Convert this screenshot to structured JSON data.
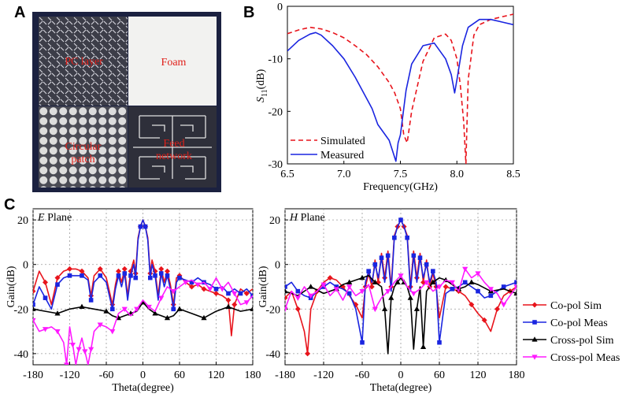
{
  "panels": {
    "a": "A",
    "b": "B",
    "c": "C"
  },
  "photo": {
    "tiles": [
      {
        "label": "PC layer"
      },
      {
        "label": "Foam"
      },
      {
        "label": "Circular\npatch"
      },
      {
        "label": "Feed\nnetwork"
      }
    ]
  },
  "colors": {
    "co_sim": "#e8141c",
    "co_meas": "#1a25e0",
    "cross_sim": "#000000",
    "cross_meas": "#ff1aff",
    "sim_b": "#e8141c",
    "meas_b": "#1a25e0"
  },
  "chart_data": [
    {
      "id": "s11",
      "type": "line",
      "title": "",
      "xlabel": "Frequency(GHz)",
      "ylabel": "S11(dB)",
      "xlim": [
        6.5,
        8.5
      ],
      "ylim": [
        -30,
        0
      ],
      "xticks": [
        "6.5",
        "7.0",
        "7.5",
        "8.0",
        "8.5"
      ],
      "yticks": [
        "0",
        "-10",
        "-20",
        "-30"
      ],
      "series": [
        {
          "name": "Simulated",
          "style": "dashed",
          "x": [
            6.5,
            6.6,
            6.7,
            6.8,
            6.9,
            7.0,
            7.1,
            7.2,
            7.3,
            7.4,
            7.45,
            7.5,
            7.53,
            7.56,
            7.6,
            7.7,
            7.8,
            7.9,
            7.95,
            8.0,
            8.03,
            8.06,
            8.08,
            8.1,
            8.15,
            8.2,
            8.3,
            8.4,
            8.5
          ],
          "y": [
            -5.2,
            -4.5,
            -4.0,
            -4.3,
            -5.0,
            -6.0,
            -7.5,
            -9.2,
            -11.5,
            -14.5,
            -16.5,
            -19.5,
            -24.5,
            -26.0,
            -20.0,
            -10.5,
            -6.0,
            -5.3,
            -6.5,
            -10.0,
            -15.0,
            -22.0,
            -30.0,
            -14.0,
            -5.5,
            -3.5,
            -2.5,
            -2.0,
            -1.5
          ]
        },
        {
          "name": "Measured",
          "style": "solid",
          "x": [
            6.5,
            6.6,
            6.7,
            6.75,
            6.8,
            6.9,
            7.0,
            7.1,
            7.2,
            7.25,
            7.3,
            7.35,
            7.4,
            7.43,
            7.46,
            7.48,
            7.5,
            7.55,
            7.6,
            7.7,
            7.8,
            7.9,
            7.95,
            7.98,
            8.0,
            8.05,
            8.1,
            8.2,
            8.3,
            8.4,
            8.5
          ],
          "y": [
            -8.5,
            -6.5,
            -5.3,
            -5.0,
            -5.5,
            -7.5,
            -10.0,
            -13.5,
            -17.5,
            -19.5,
            -22.5,
            -24.0,
            -25.5,
            -27.5,
            -29.5,
            -26.0,
            -24.5,
            -16.0,
            -11.0,
            -7.5,
            -7.0,
            -10.0,
            -13.0,
            -16.5,
            -14.0,
            -7.5,
            -4.0,
            -2.5,
            -2.5,
            -3.0,
            -3.5
          ]
        }
      ]
    },
    {
      "id": "eplane",
      "type": "line",
      "title": "E Plane",
      "xlabel": "Theta(degree)",
      "ylabel": "Gain(dB)",
      "xlim": [
        -180,
        180
      ],
      "ylim": [
        -45,
        25
      ],
      "xticks": [
        "-180",
        "-120",
        "-60",
        "0",
        "60",
        "120",
        "180"
      ],
      "yticks": [
        "20",
        "0",
        "-20",
        "-40"
      ],
      "series": [
        {
          "name": "Co-pol Sim",
          "x": [
            -180,
            -170,
            -160,
            -150,
            -140,
            -130,
            -120,
            -110,
            -100,
            -90,
            -85,
            -80,
            -70,
            -60,
            -50,
            -45,
            -40,
            -35,
            -30,
            -25,
            -20,
            -15,
            -12,
            -8,
            -4,
            0,
            4,
            8,
            12,
            15,
            20,
            25,
            30,
            35,
            40,
            45,
            50,
            55,
            60,
            70,
            80,
            90,
            100,
            110,
            120,
            130,
            140,
            145,
            150,
            160,
            170,
            180
          ],
          "y": [
            -12,
            -3,
            -8,
            -18,
            -6,
            -3,
            -2,
            -2,
            -3,
            -6,
            -14,
            -5,
            -2,
            -6,
            -18,
            -9,
            -3,
            -8,
            -2,
            -14,
            -3,
            2,
            -4,
            12,
            17,
            20,
            17,
            12,
            -4,
            2,
            -3,
            -14,
            -2,
            -8,
            -3,
            -9,
            -18,
            -6,
            -5,
            -8,
            -10,
            -9,
            -11,
            -12,
            -13,
            -14,
            -16,
            -32,
            -18,
            -11,
            -13,
            -11
          ]
        },
        {
          "name": "Co-pol Meas",
          "x": [
            -180,
            -170,
            -160,
            -150,
            -140,
            -130,
            -120,
            -110,
            -100,
            -90,
            -85,
            -80,
            -70,
            -60,
            -50,
            -45,
            -40,
            -35,
            -30,
            -25,
            -20,
            -15,
            -12,
            -8,
            -4,
            0,
            4,
            8,
            12,
            15,
            20,
            25,
            30,
            35,
            40,
            45,
            50,
            55,
            60,
            70,
            80,
            90,
            100,
            110,
            120,
            130,
            140,
            150,
            160,
            170,
            180
          ],
          "y": [
            -18,
            -10,
            -15,
            -20,
            -9,
            -6,
            -5,
            -5,
            -5,
            -7,
            -16,
            -8,
            -5,
            -8,
            -20,
            -11,
            -5,
            -10,
            -4,
            -16,
            -5,
            0,
            -6,
            11,
            17,
            20,
            17,
            11,
            -6,
            0,
            -5,
            -16,
            -4,
            -10,
            -5,
            -11,
            -20,
            -8,
            -6,
            -7,
            -8,
            -6,
            -8,
            -9,
            -11,
            -10,
            -13,
            -11,
            -13,
            -11,
            -14
          ]
        },
        {
          "name": "Cross-pol Sim",
          "x": [
            -180,
            -160,
            -140,
            -120,
            -100,
            -80,
            -60,
            -50,
            -40,
            -30,
            -20,
            -10,
            0,
            10,
            20,
            30,
            40,
            50,
            60,
            80,
            100,
            120,
            140,
            160,
            180
          ],
          "y": [
            -20,
            -21,
            -22,
            -20,
            -19,
            -20,
            -21,
            -23,
            -24,
            -23,
            -22,
            -21,
            -17,
            -20,
            -22,
            -23,
            -24,
            -23,
            -20,
            -22,
            -24,
            -21,
            -19,
            -21,
            -20
          ]
        },
        {
          "name": "Cross-pol Meas",
          "x": [
            -180,
            -170,
            -160,
            -150,
            -140,
            -130,
            -125,
            -120,
            -115,
            -110,
            -105,
            -100,
            -95,
            -90,
            -85,
            -80,
            -70,
            -60,
            -50,
            -40,
            -30,
            -20,
            -10,
            0,
            10,
            20,
            30,
            40,
            50,
            60,
            70,
            80,
            90,
            100,
            110,
            120,
            130,
            140,
            150,
            160,
            170,
            180
          ],
          "y": [
            -25,
            -30,
            -29,
            -28,
            -30,
            -35,
            -45,
            -28,
            -36,
            -45,
            -38,
            -33,
            -39,
            -45,
            -38,
            -30,
            -27,
            -28,
            -30,
            -22,
            -20,
            -23,
            -20,
            -16,
            -19,
            -21,
            -15,
            -10,
            -12,
            -10,
            -8,
            -7,
            -9,
            -8,
            -11,
            -6,
            -11,
            -8,
            -13,
            -18,
            -17,
            -14
          ]
        }
      ]
    },
    {
      "id": "hplane",
      "type": "line",
      "title": "H Plane",
      "xlabel": "Theta(degree)",
      "ylabel": "Gain(dB)",
      "xlim": [
        -180,
        180
      ],
      "ylim": [
        -45,
        25
      ],
      "xticks": [
        "-180",
        "-120",
        "-60",
        "0",
        "60",
        "120",
        "180"
      ],
      "yticks": [
        "20",
        "0",
        "-20",
        "-40"
      ],
      "series": [
        {
          "name": "Co-pol Sim",
          "x": [
            -180,
            -170,
            -160,
            -150,
            -145,
            -140,
            -130,
            -120,
            -110,
            -100,
            -90,
            -80,
            -70,
            -60,
            -55,
            -50,
            -45,
            -40,
            -35,
            -30,
            -25,
            -20,
            -15,
            -10,
            -5,
            0,
            5,
            10,
            15,
            20,
            25,
            30,
            35,
            40,
            45,
            50,
            55,
            60,
            70,
            80,
            90,
            100,
            110,
            120,
            130,
            140,
            150,
            160,
            170,
            180
          ],
          "y": [
            -15,
            -12,
            -20,
            -30,
            -40,
            -20,
            -12,
            -8,
            -6,
            -7,
            -10,
            -14,
            -18,
            -24,
            -10,
            -4,
            -10,
            2,
            -8,
            5,
            -6,
            6,
            -10,
            13,
            17,
            20,
            17,
            13,
            -10,
            6,
            -6,
            5,
            -8,
            2,
            -10,
            -4,
            -10,
            -24,
            -10,
            -11,
            -12,
            -14,
            -18,
            -22,
            -25,
            -30,
            -20,
            -14,
            -12,
            -10
          ]
        },
        {
          "name": "Co-pol Meas",
          "x": [
            -180,
            -170,
            -160,
            -150,
            -140,
            -130,
            -120,
            -110,
            -100,
            -90,
            -80,
            -70,
            -60,
            -55,
            -50,
            -45,
            -40,
            -35,
            -30,
            -25,
            -20,
            -15,
            -10,
            -5,
            0,
            5,
            10,
            15,
            20,
            25,
            30,
            35,
            40,
            45,
            50,
            55,
            60,
            70,
            80,
            90,
            100,
            110,
            120,
            130,
            140,
            150,
            160,
            170,
            180
          ],
          "y": [
            -10,
            -8,
            -12,
            -14,
            -15,
            -12,
            -10,
            -8,
            -10,
            -11,
            -13,
            -20,
            -35,
            -8,
            -3,
            -8,
            0,
            -6,
            3,
            -8,
            4,
            -12,
            12,
            17,
            20,
            17,
            12,
            -12,
            4,
            -8,
            3,
            -6,
            0,
            -8,
            -3,
            -8,
            -35,
            -13,
            -11,
            -10,
            -8,
            -10,
            -12,
            -15,
            -14,
            -12,
            -10,
            -9,
            -8
          ]
        },
        {
          "name": "Cross-pol Sim",
          "x": [
            -180,
            -160,
            -140,
            -120,
            -100,
            -90,
            -80,
            -70,
            -60,
            -50,
            -40,
            -30,
            -25,
            -20,
            -15,
            -10,
            -5,
            0,
            5,
            10,
            15,
            20,
            25,
            30,
            35,
            40,
            50,
            60,
            70,
            80,
            90,
            100,
            110,
            120,
            140,
            160,
            180
          ],
          "y": [
            -12,
            -14,
            -10,
            -13,
            -11,
            -9,
            -8,
            -7,
            -6,
            -5,
            -8,
            -10,
            -20,
            -40,
            -15,
            -10,
            -8,
            -6,
            -8,
            -10,
            -15,
            -38,
            -20,
            -10,
            -37,
            -12,
            -8,
            -6,
            -7,
            -9,
            -11,
            -10,
            -8,
            -9,
            -12,
            -11,
            -13
          ]
        },
        {
          "name": "Cross-pol Meas",
          "x": [
            -180,
            -170,
            -160,
            -150,
            -140,
            -130,
            -120,
            -110,
            -100,
            -90,
            -80,
            -70,
            -60,
            -50,
            -40,
            -30,
            -20,
            -10,
            0,
            10,
            20,
            30,
            40,
            50,
            60,
            70,
            80,
            90,
            100,
            110,
            120,
            130,
            140,
            150,
            160,
            170,
            180
          ],
          "y": [
            -20,
            -12,
            -15,
            -10,
            -14,
            -12,
            -9,
            -14,
            -11,
            -16,
            -10,
            -14,
            -12,
            -9,
            -20,
            -15,
            -12,
            -8,
            -5,
            -10,
            -13,
            -11,
            -8,
            -12,
            -10,
            -7,
            -8,
            -12,
            -2,
            -6,
            -4,
            -8,
            -11,
            -13,
            -18,
            -14,
            -10
          ]
        }
      ]
    }
  ],
  "legend_c": [
    "Co-pol Sim",
    "Co-pol Meas",
    "Cross-pol Sim",
    "Cross-pol Meas"
  ]
}
